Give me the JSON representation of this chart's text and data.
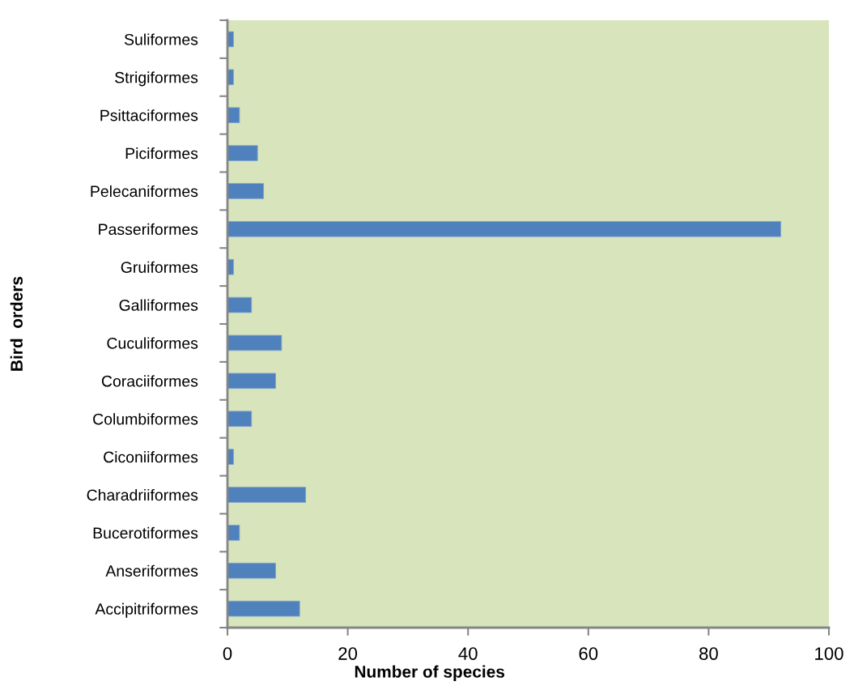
{
  "chart_data": {
    "type": "bar",
    "orientation": "horizontal",
    "xlabel": "Number of species",
    "ylabel": "Bird  orders",
    "categories": [
      "Suliformes",
      "Strigiformes",
      "Psittaciformes",
      "Piciformes",
      "Pelecaniformes",
      "Passeriformes",
      "Gruiformes",
      "Galliformes",
      "Cuculiformes",
      "Coraciiformes",
      "Columbiformes",
      "Ciconiiformes",
      "Charadriiformes",
      "Bucerotiformes",
      "Anseriformes",
      "Accipitriformes"
    ],
    "values": [
      1,
      1,
      2,
      5,
      6,
      92,
      1,
      4,
      9,
      8,
      4,
      1,
      13,
      2,
      8,
      12
    ],
    "color": "#4f81bd",
    "xlim": [
      0,
      100
    ],
    "xticks": [
      0,
      20,
      40,
      60,
      80,
      100
    ],
    "grid": false,
    "legend": false
  }
}
